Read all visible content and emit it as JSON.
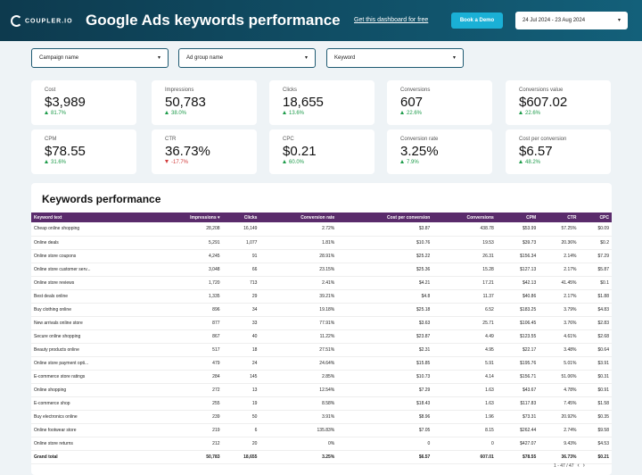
{
  "header": {
    "logo": "COUPLER.IO",
    "title": "Google Ads keywords performance",
    "link": "Get this dashboard for free",
    "button": "Book a Demo",
    "date_range": "24 Jul 2024 - 23 Aug 2024"
  },
  "filters": [
    "Campaign name",
    "Ad group name",
    "Keyword"
  ],
  "kpis": [
    {
      "label": "Cost",
      "value": "$3,989",
      "delta": "81.7%"
    },
    {
      "label": "Impressions",
      "value": "50,783",
      "delta": "38.0%"
    },
    {
      "label": "Clicks",
      "value": "18,655",
      "delta": "13.6%"
    },
    {
      "label": "Conversions",
      "value": "607",
      "delta": "22.6%"
    },
    {
      "label": "Conversions value",
      "value": "$607.02",
      "delta": "22.6%"
    },
    {
      "label": "CPM",
      "value": "$78.55",
      "delta": "31.6%"
    },
    {
      "label": "CTR",
      "value": "36.73%",
      "delta": "-17.7%"
    },
    {
      "label": "CPC",
      "value": "$0.21",
      "delta": "60.0%"
    },
    {
      "label": "Conversion rate",
      "value": "3.25%",
      "delta": "7.9%"
    },
    {
      "label": "Cost per conversion",
      "value": "$6.57",
      "delta": "48.2%"
    }
  ],
  "table": {
    "title": "Keywords performance",
    "columns": [
      "Keyword text",
      "Impressions",
      "Clicks",
      "Conversion rate",
      "Cost per conversion",
      "Conversions",
      "CPM",
      "CTR",
      "CPC"
    ],
    "rows": [
      [
        "Cheap online shopping",
        "28,208",
        "16,149",
        "2.72%",
        "$3.87",
        "438.78",
        "$53.99",
        "57.25%",
        "$0.09"
      ],
      [
        "Online deals",
        "5,291",
        "1,077",
        "1.81%",
        "$10.76",
        "19.53",
        "$39.73",
        "20.36%",
        "$0.2"
      ],
      [
        "Online store coupons",
        "4,245",
        "91",
        "28.91%",
        "$25.22",
        "26.31",
        "$156.34",
        "2.14%",
        "$7.29"
      ],
      [
        "Online store customer serv...",
        "3,048",
        "66",
        "23.15%",
        "$25.36",
        "15.28",
        "$127.13",
        "2.17%",
        "$5.87"
      ],
      [
        "Online store reviews",
        "1,720",
        "713",
        "2.41%",
        "$4.21",
        "17.21",
        "$42.13",
        "41.45%",
        "$0.1"
      ],
      [
        "Best deals online",
        "1,335",
        "29",
        "39.21%",
        "$4.8",
        "11.37",
        "$40.86",
        "2.17%",
        "$1.88"
      ],
      [
        "Buy clothing online",
        "896",
        "34",
        "19.18%",
        "$25.18",
        "6.52",
        "$183.25",
        "3.79%",
        "$4.83"
      ],
      [
        "New arrivals online store",
        "877",
        "33",
        "77.91%",
        "$3.63",
        "25.71",
        "$106.45",
        "3.76%",
        "$2.83"
      ],
      [
        "Secure online shopping",
        "867",
        "40",
        "11.22%",
        "$23.87",
        "4.49",
        "$123.55",
        "4.61%",
        "$2.68"
      ],
      [
        "Beauty products online",
        "517",
        "18",
        "27.51%",
        "$2.31",
        "4.95",
        "$22.17",
        "3.48%",
        "$0.64"
      ],
      [
        "Online store payment opti...",
        "479",
        "24",
        "24.64%",
        "$15.85",
        "5.91",
        "$195.76",
        "5.01%",
        "$3.91"
      ],
      [
        "E-commerce store ratings",
        "284",
        "145",
        "2.85%",
        "$10.73",
        "4.14",
        "$156.71",
        "51.06%",
        "$0.31"
      ],
      [
        "Online shopping",
        "272",
        "13",
        "12.54%",
        "$7.29",
        "1.63",
        "$43.67",
        "4.78%",
        "$0.91"
      ],
      [
        "E-commerce shop",
        "255",
        "19",
        "8.58%",
        "$18.43",
        "1.63",
        "$117.83",
        "7.45%",
        "$1.58"
      ],
      [
        "Buy electronics online",
        "239",
        "50",
        "3.91%",
        "$8.96",
        "1.96",
        "$73.31",
        "20.92%",
        "$0.35"
      ],
      [
        "Online footwear store",
        "219",
        "6",
        "135.83%",
        "$7.05",
        "8.15",
        "$262.44",
        "2.74%",
        "$9.58"
      ],
      [
        "Online store returns",
        "212",
        "20",
        "0%",
        "0",
        "0",
        "$427.07",
        "9.43%",
        "$4.53"
      ]
    ],
    "total": [
      "Grand total",
      "50,783",
      "18,655",
      "3.25%",
      "$6.57",
      "607.01",
      "$78.55",
      "36.73%",
      "$0.21"
    ],
    "pagination": "1 - 47 / 47"
  }
}
